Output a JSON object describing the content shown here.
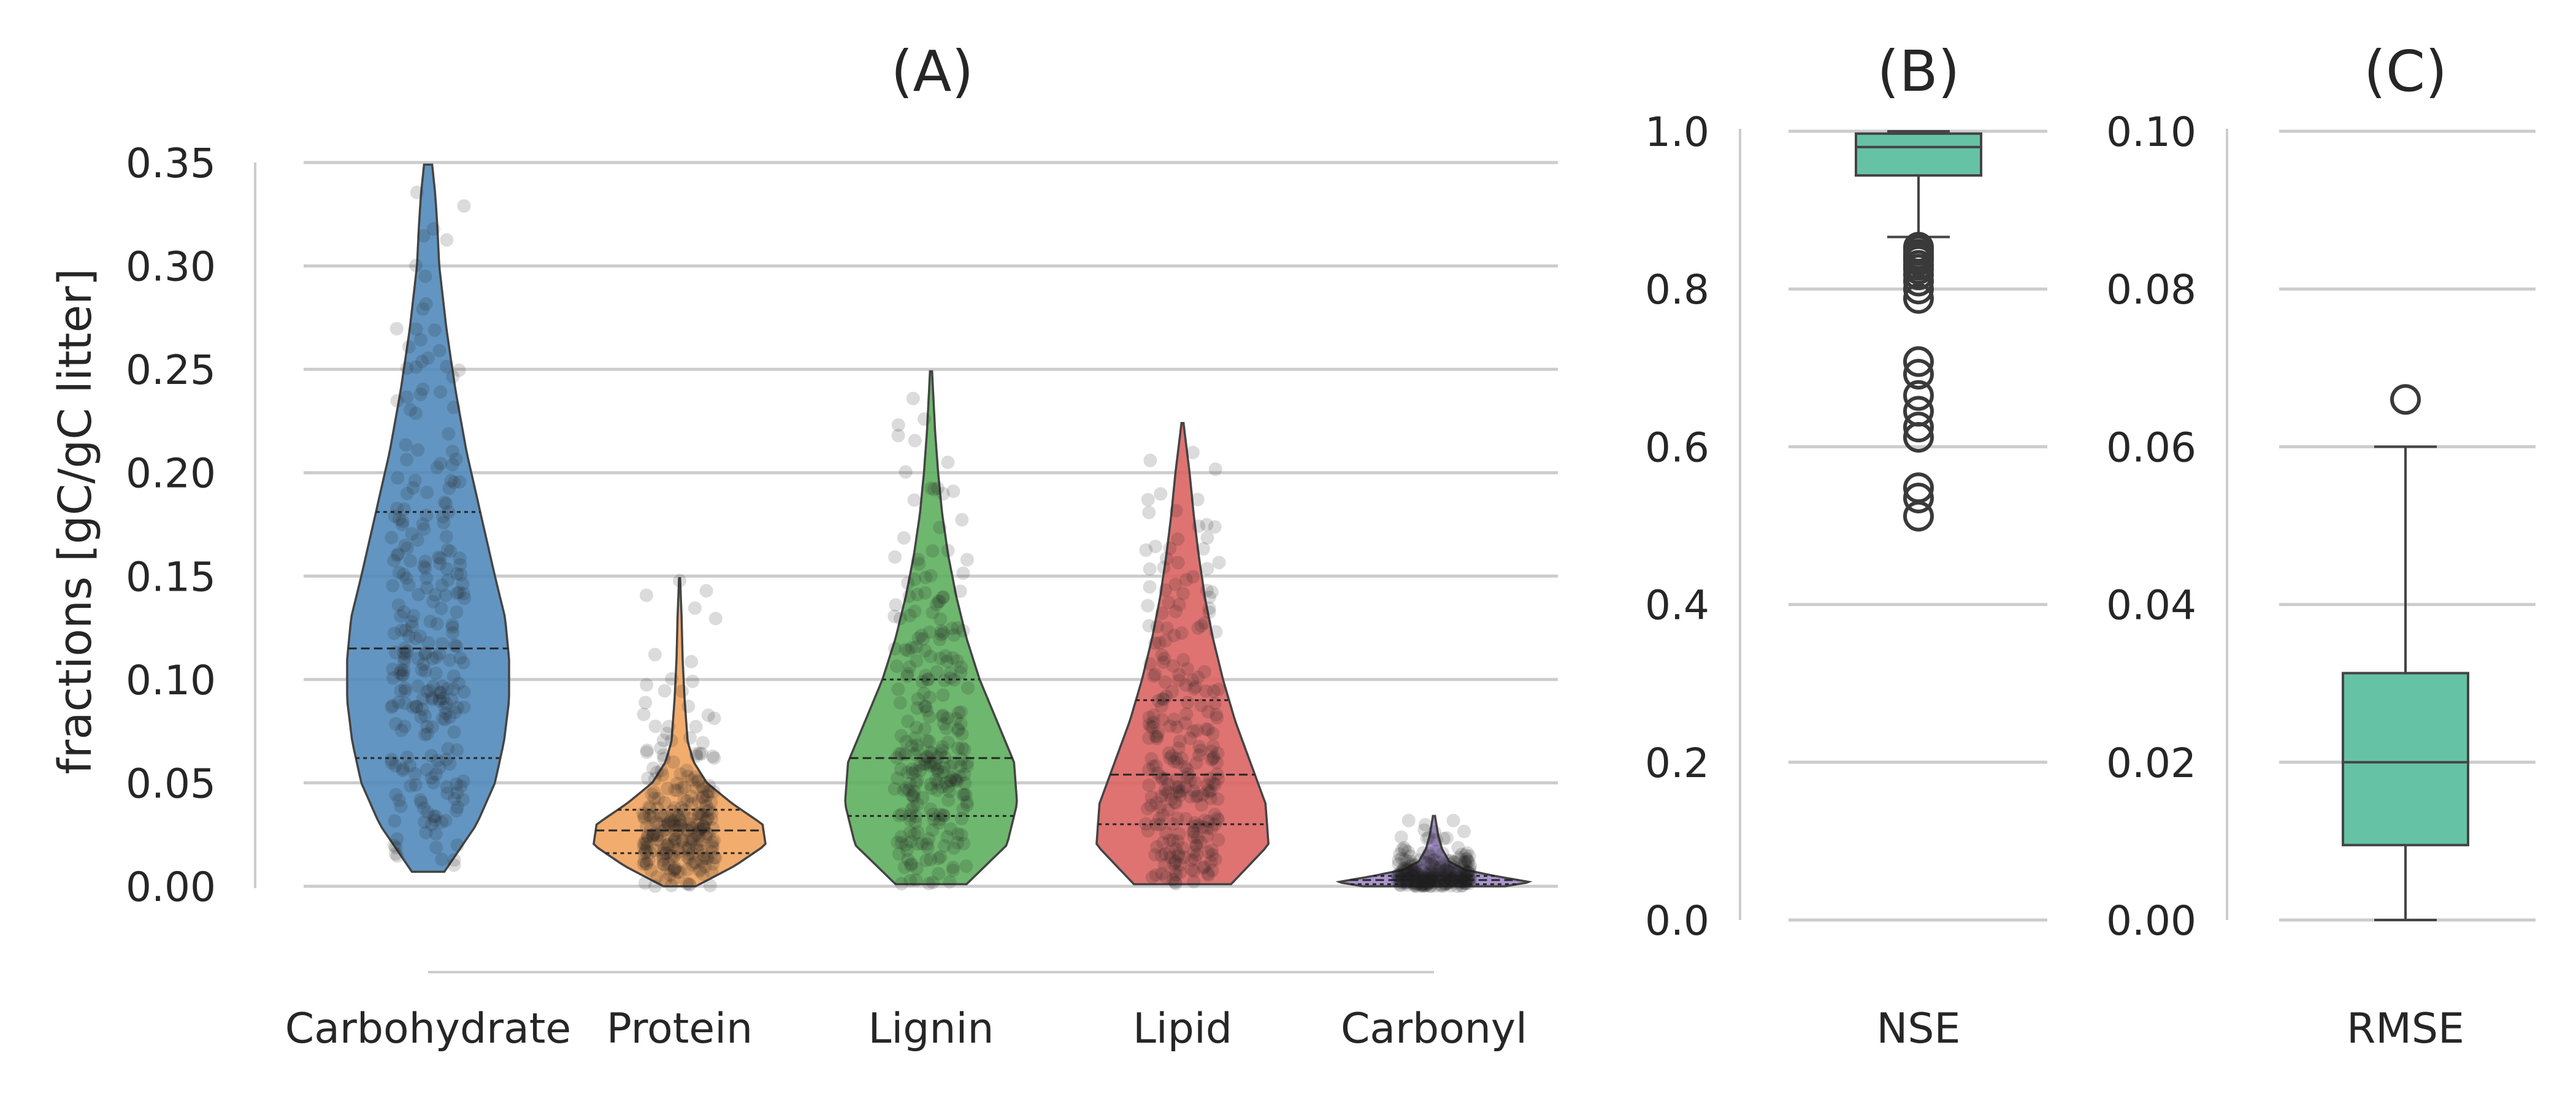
{
  "chart_data": [
    {
      "panel": "A",
      "type": "violin",
      "title": "(A)",
      "ylabel": "fractions [gC/gC litter]",
      "xlabel": "",
      "ylim": [
        0,
        0.35
      ],
      "yticks": [
        "0.00",
        "0.05",
        "0.10",
        "0.15",
        "0.20",
        "0.25",
        "0.30",
        "0.35"
      ],
      "grid": true,
      "categories": [
        "Carbohydrate",
        "Protein",
        "Lignin",
        "Lipid",
        "Carbonyl"
      ],
      "series": [
        {
          "category": "Carbohydrate",
          "color": "#4c86b8",
          "min": 0.007,
          "max": 0.349,
          "q1": 0.062,
          "median": 0.115,
          "q3": 0.181,
          "density": [
            [
              0.007,
              0.16
            ],
            [
              0.03,
              0.48
            ],
            [
              0.05,
              0.66
            ],
            [
              0.07,
              0.75
            ],
            [
              0.09,
              0.8
            ],
            [
              0.11,
              0.8
            ],
            [
              0.13,
              0.76
            ],
            [
              0.15,
              0.66
            ],
            [
              0.18,
              0.52
            ],
            [
              0.21,
              0.38
            ],
            [
              0.24,
              0.27
            ],
            [
              0.27,
              0.18
            ],
            [
              0.3,
              0.11
            ],
            [
              0.32,
              0.09
            ],
            [
              0.335,
              0.07
            ],
            [
              0.349,
              0.04
            ]
          ]
        },
        {
          "category": "Protein",
          "color": "#f0a05a",
          "min": 0.0,
          "max": 0.149,
          "q1": 0.016,
          "median": 0.027,
          "q3": 0.037,
          "density": [
            [
              0.0,
              0.16
            ],
            [
              0.01,
              0.55
            ],
            [
              0.02,
              0.85
            ],
            [
              0.03,
              0.82
            ],
            [
              0.04,
              0.52
            ],
            [
              0.05,
              0.27
            ],
            [
              0.06,
              0.14
            ],
            [
              0.07,
              0.08
            ],
            [
              0.09,
              0.05
            ],
            [
              0.11,
              0.03
            ],
            [
              0.13,
              0.02
            ],
            [
              0.149,
              0.005
            ]
          ]
        },
        {
          "category": "Lignin",
          "color": "#5aad5a",
          "min": 0.001,
          "max": 0.249,
          "q1": 0.034,
          "median": 0.062,
          "q3": 0.1,
          "density": [
            [
              0.001,
              0.35
            ],
            [
              0.02,
              0.75
            ],
            [
              0.04,
              0.85
            ],
            [
              0.06,
              0.82
            ],
            [
              0.08,
              0.65
            ],
            [
              0.1,
              0.48
            ],
            [
              0.12,
              0.35
            ],
            [
              0.14,
              0.25
            ],
            [
              0.16,
              0.17
            ],
            [
              0.18,
              0.11
            ],
            [
              0.2,
              0.07
            ],
            [
              0.22,
              0.04
            ],
            [
              0.249,
              0.01
            ]
          ]
        },
        {
          "category": "Lipid",
          "color": "#d9605f",
          "min": 0.001,
          "max": 0.224,
          "q1": 0.03,
          "median": 0.054,
          "q3": 0.09,
          "density": [
            [
              0.001,
              0.48
            ],
            [
              0.02,
              0.85
            ],
            [
              0.04,
              0.82
            ],
            [
              0.06,
              0.67
            ],
            [
              0.08,
              0.52
            ],
            [
              0.1,
              0.4
            ],
            [
              0.12,
              0.3
            ],
            [
              0.14,
              0.22
            ],
            [
              0.16,
              0.16
            ],
            [
              0.18,
              0.11
            ],
            [
              0.2,
              0.07
            ],
            [
              0.224,
              0.01
            ]
          ]
        },
        {
          "category": "Carbonyl",
          "color": "#9e86c8",
          "min": 0.0,
          "max": 0.034,
          "q1": 0.001,
          "median": 0.003,
          "q3": 0.005,
          "density": [
            [
              0.0,
              0.7
            ],
            [
              0.002,
              0.95
            ],
            [
              0.005,
              0.6
            ],
            [
              0.008,
              0.3
            ],
            [
              0.012,
              0.15
            ],
            [
              0.018,
              0.08
            ],
            [
              0.025,
              0.04
            ],
            [
              0.034,
              0.01
            ]
          ]
        }
      ]
    },
    {
      "panel": "B",
      "type": "box",
      "title": "(B)",
      "category": "NSE",
      "ylim": [
        0,
        1.0
      ],
      "yticks": [
        "0.0",
        "0.2",
        "0.4",
        "0.6",
        "0.8",
        "1.0"
      ],
      "color": "#66c2a5",
      "whisker_low": 0.866,
      "q1": 0.944,
      "median": 0.98,
      "q3": 0.997,
      "whisker_high": 1.0,
      "outliers": [
        0.853,
        0.849,
        0.844,
        0.84,
        0.836,
        0.83,
        0.825,
        0.818,
        0.81,
        0.8,
        0.788,
        0.708,
        0.692,
        0.665,
        0.645,
        0.625,
        0.612,
        0.548,
        0.535,
        0.512
      ]
    },
    {
      "panel": "C",
      "type": "box",
      "title": "(C)",
      "category": "RMSE",
      "ylim": [
        0,
        0.1
      ],
      "yticks": [
        "0.00",
        "0.02",
        "0.04",
        "0.06",
        "0.08",
        "0.10"
      ],
      "color": "#66c2a5",
      "whisker_low": 0.0,
      "q1": 0.0095,
      "median": 0.02,
      "q3": 0.0313,
      "whisker_high": 0.06,
      "outliers": [
        0.066
      ]
    }
  ]
}
